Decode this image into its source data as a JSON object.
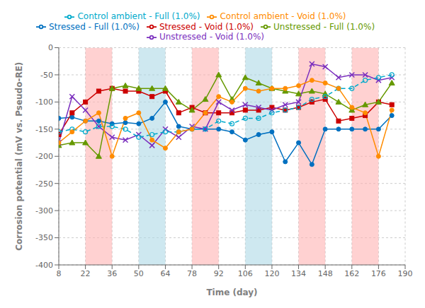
{
  "chart_data": {
    "type": "line",
    "xlabel": "Time (day)",
    "ylabel": "Corrosion potential (mV vs. Pseudo-RE)",
    "xlim": [
      8,
      190
    ],
    "ylim": [
      -400,
      0
    ],
    "xticks": [
      8,
      22,
      36,
      50,
      64,
      78,
      92,
      106,
      120,
      134,
      148,
      162,
      176,
      190
    ],
    "yticks": [
      0,
      -50,
      -100,
      -150,
      -200,
      -250,
      -300,
      -350,
      -400
    ],
    "grid": true,
    "legend": "top",
    "bands": [
      {
        "x": [
          22,
          36
        ],
        "color": "#FFB3B3"
      },
      {
        "x": [
          78,
          92
        ],
        "color": "#FFB3B3"
      },
      {
        "x": [
          134,
          148
        ],
        "color": "#FFB3B3"
      },
      {
        "x": [
          162,
          176
        ],
        "color": "#FFB3B3"
      },
      {
        "x": [
          50,
          64
        ],
        "color": "#ADD8E6"
      },
      {
        "x": [
          106,
          120
        ],
        "color": "#ADD8E6"
      }
    ],
    "x": [
      8,
      15,
      22,
      29,
      36,
      43,
      50,
      57,
      64,
      71,
      78,
      85,
      92,
      99,
      106,
      113,
      120,
      127,
      134,
      141,
      148,
      155,
      162,
      169,
      176,
      183
    ],
    "series": [
      {
        "name": "Stressed - Full (1.0%)",
        "color": "#0070C0",
        "marker": "circle",
        "line_style": "solid",
        "values": [
          -130,
          -128,
          -135,
          -135,
          -140,
          -138,
          -140,
          -130,
          -100,
          -145,
          -150,
          -150,
          -150,
          -155,
          -170,
          -160,
          -155,
          -210,
          -175,
          -215,
          -150,
          -150,
          -150,
          -150,
          -150,
          -125
        ]
      },
      {
        "name": "Stressed - Void (1.0%)",
        "color": "#CC0000",
        "marker": "square",
        "line_style": "solid",
        "values": [
          -160,
          -120,
          -100,
          -80,
          -75,
          -80,
          -80,
          -90,
          -80,
          -120,
          -110,
          -120,
          -120,
          -120,
          -115,
          -115,
          -110,
          -115,
          -110,
          -100,
          -95,
          -135,
          -130,
          -125,
          -100,
          -105
        ]
      },
      {
        "name": "Unstressed - Full (1.0%)",
        "color": "#669900",
        "marker": "triangle",
        "line_style": "solid",
        "values": [
          -180,
          -175,
          -175,
          -200,
          -75,
          -70,
          -75,
          -75,
          -75,
          -100,
          -115,
          -95,
          -50,
          -95,
          -55,
          -65,
          -75,
          -80,
          -85,
          -80,
          -85,
          -100,
          -115,
          -105,
          -100,
          -65
        ]
      },
      {
        "name": "Unstressed - Void (1.0%)",
        "color": "#7B2FBE",
        "marker": "cross",
        "line_style": "solid",
        "values": [
          -175,
          -90,
          -115,
          -145,
          -165,
          -170,
          -160,
          -180,
          -150,
          -165,
          -145,
          -150,
          -100,
          -115,
          -105,
          -110,
          -115,
          -105,
          -100,
          -30,
          -35,
          -55,
          -50,
          -50,
          -60,
          -55
        ]
      },
      {
        "name": "Control ambient - Full (1.0%)",
        "color": "#00AACC",
        "marker": "open_circle",
        "line_style": "dashed",
        "values": [
          -155,
          -150,
          -155,
          -145,
          -145,
          -150,
          -165,
          -160,
          -155,
          -155,
          -150,
          -150,
          -135,
          -140,
          -130,
          -130,
          -120,
          -115,
          -110,
          -95,
          -90,
          -75,
          -75,
          -60,
          -55,
          -50
        ]
      },
      {
        "name": "Control ambient - Void (1.0%)",
        "color": "#FF8C00",
        "marker": "circle",
        "line_style": "solid",
        "values": [
          -175,
          -155,
          -135,
          -120,
          -200,
          -130,
          -120,
          -170,
          -185,
          -155,
          -150,
          -120,
          -90,
          -100,
          -75,
          -80,
          -75,
          -75,
          -70,
          -60,
          -65,
          -75,
          -110,
          -120,
          -200,
          -115
        ]
      }
    ]
  }
}
